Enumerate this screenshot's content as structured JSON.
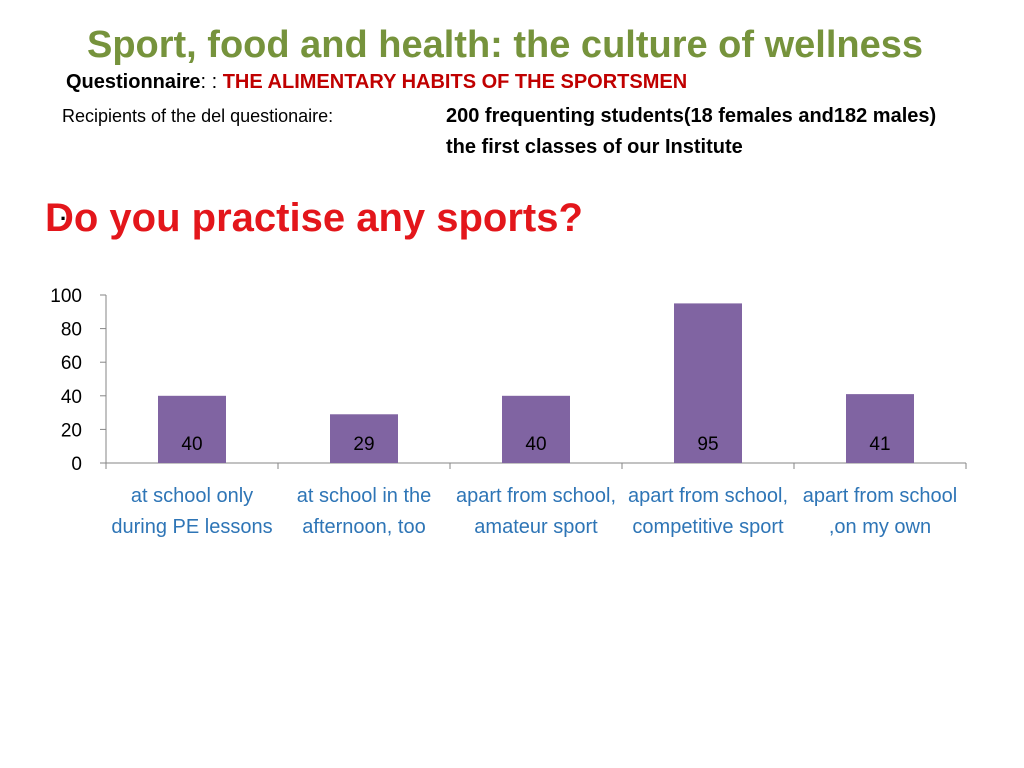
{
  "header": {
    "title": "Sport, food and health: the culture of wellness",
    "questionnaire_label": "Questionnaire",
    "questionnaire_sep": ": : ",
    "questionnaire_title": "THE ALIMENTARY  HABITS OF THE SPORTSMEN",
    "recipients_label": "Recipients of the del questionaire:",
    "recipients_value": "200 frequenting students(18 females and182 males)   the first classes of our Institute"
  },
  "question": {
    "dot": ".",
    "text": "Do you practise any sports?"
  },
  "colors": {
    "title": "#76933c",
    "question": "#e3161b",
    "bars": "#8064a2",
    "category_labels": "#2e75b6"
  },
  "chart_data": {
    "type": "bar",
    "categories": [
      "at school only during PE lessons",
      "at school in the afternoon, too",
      "apart from school, amateur sport",
      "apart from school, competitive sport",
      "apart from school ,on my own"
    ],
    "values": [
      40,
      29,
      40,
      95,
      41
    ],
    "data_labels": [
      "40",
      "29",
      "40",
      "95",
      "41"
    ],
    "yticks": [
      "0",
      "20",
      "40",
      "60",
      "80",
      "100"
    ],
    "ylim": [
      0,
      100
    ],
    "grid": false,
    "legend": "none"
  }
}
